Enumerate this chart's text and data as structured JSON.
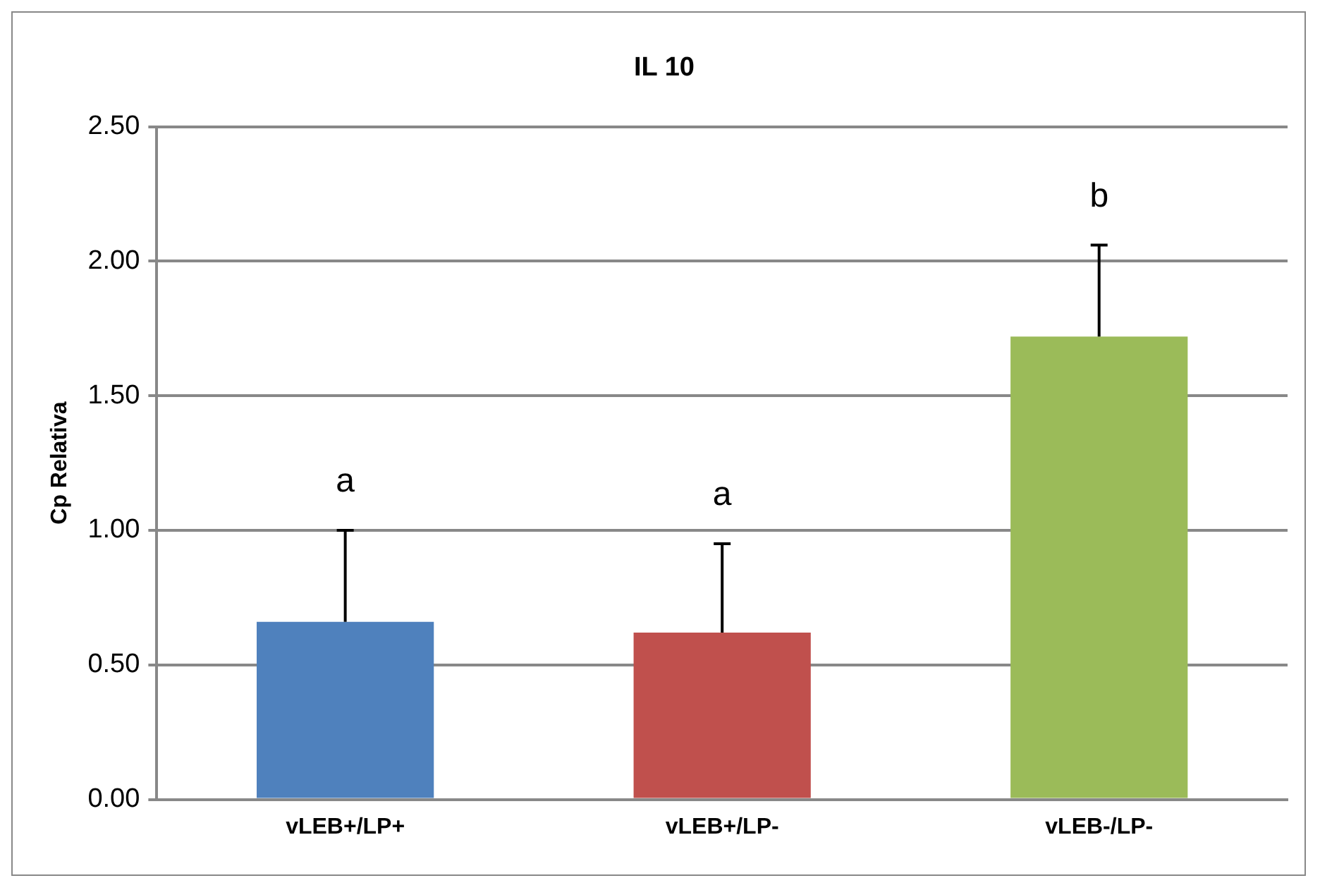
{
  "chart_data": {
    "type": "bar",
    "title": "IL 10",
    "ylabel": "Cp Relativa",
    "categories": [
      "vLEB+/LP+",
      "vLEB+/LP-",
      "vLEB-/LP-"
    ],
    "values": [
      0.66,
      0.62,
      1.72
    ],
    "colors": [
      "#4f81bd",
      "#c0504d",
      "#9bbb59"
    ],
    "errors": [
      [
        0.66,
        1.0
      ],
      [
        0.62,
        0.95
      ],
      [
        1.72,
        2.06
      ]
    ],
    "ylim": [
      0,
      2.5
    ],
    "yticks": [
      {
        "value": 0,
        "label": "0.00"
      },
      {
        "value": 0.5,
        "label": "0.50"
      },
      {
        "value": 1,
        "label": "1.00"
      },
      {
        "value": 1.5,
        "label": "1.50"
      },
      {
        "value": 2,
        "label": "2.00"
      },
      {
        "value": 2.5,
        "label": "2.50"
      }
    ],
    "grid": "y",
    "legend": false,
    "annotations": [
      "a",
      "a",
      "b"
    ]
  }
}
